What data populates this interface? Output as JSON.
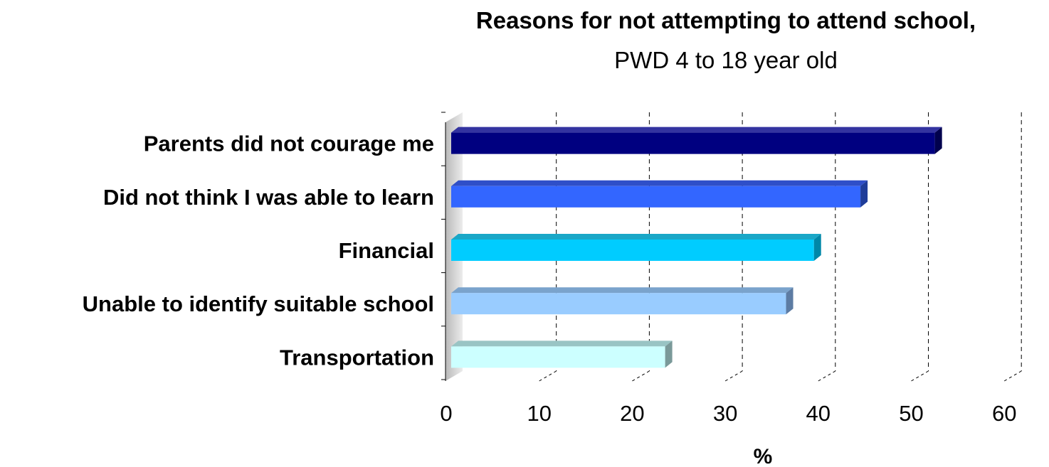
{
  "chart_data": {
    "type": "bar",
    "orientation": "horizontal",
    "title": "Reasons for not attempting to attend school,",
    "subtitle": "PWD 4 to 18 year old",
    "xlabel": "%",
    "ylabel": "",
    "categories": [
      "Parents did not courage me",
      "Did not think I was able to learn",
      "Financial",
      "Unable to identify suitable school",
      "Transportation"
    ],
    "values": [
      52,
      44,
      39,
      36,
      23
    ],
    "xlim": [
      0,
      60
    ],
    "xticks": [
      0,
      10,
      20,
      30,
      40,
      50,
      60
    ],
    "grid": "vertical dashed",
    "legend": "none",
    "colors": [
      "#000080",
      "#3366ff",
      "#00ccff",
      "#99ccff",
      "#ccffff"
    ],
    "side_colors": [
      "#00004d",
      "#1f3d99",
      "#0087a8",
      "#5d7ca3",
      "#7a9999"
    ],
    "top_colors": [
      "#3333a0",
      "#2f4fc8",
      "#1aa7c7",
      "#7aa3cc",
      "#99c4c4"
    ]
  }
}
